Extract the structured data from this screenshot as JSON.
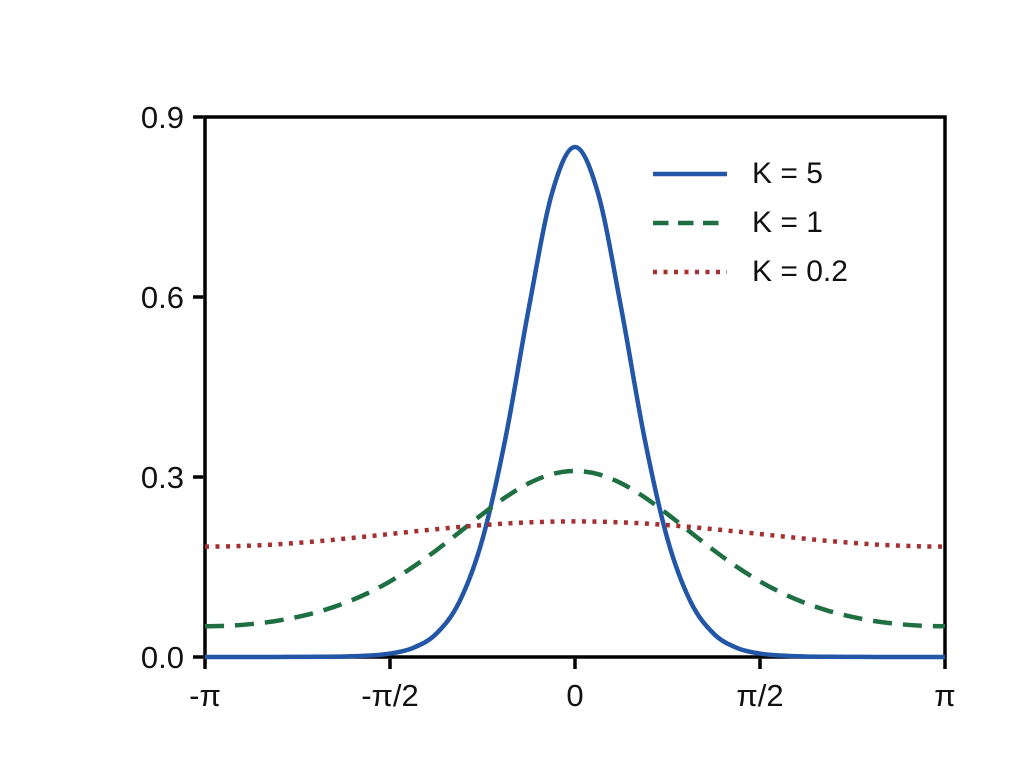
{
  "figure": {
    "background": "#ffffff",
    "axis_color": "#000000",
    "text_color": "#111111"
  },
  "chart_data": {
    "type": "line",
    "title": "",
    "xlabel": "",
    "ylabel": "",
    "grid": false,
    "legend_position": "upper right",
    "xlim": [
      -3.1416,
      3.1416
    ],
    "ylim": [
      0,
      0.9
    ],
    "x_ticks": [
      {
        "value": -3.1416,
        "label": "-π"
      },
      {
        "value": -1.5708,
        "label": "-π/2"
      },
      {
        "value": 0,
        "label": "0"
      },
      {
        "value": 1.5708,
        "label": "π/2"
      },
      {
        "value": 3.1416,
        "label": "π"
      }
    ],
    "y_ticks": [
      {
        "value": 0,
        "label": "0.0"
      },
      {
        "value": 0.3,
        "label": "0.3"
      },
      {
        "value": 0.6,
        "label": "0.6"
      },
      {
        "value": 0.9,
        "label": "0.9"
      }
    ],
    "x": [
      -3.1416,
      -2.9452,
      -2.7489,
      -2.5525,
      -2.3562,
      -2.1598,
      -1.9635,
      -1.7671,
      -1.5708,
      -1.3744,
      -1.1781,
      -0.9817,
      -0.7854,
      -0.589,
      -0.3927,
      -0.1963,
      0,
      0.1963,
      0.3927,
      0.589,
      0.7854,
      0.9817,
      1.1781,
      1.3744,
      1.5708,
      1.7671,
      1.9635,
      2.1598,
      2.3562,
      2.5525,
      2.7489,
      2.9452,
      3.1416
    ],
    "series": [
      {
        "name": "K = 5",
        "color": "#2356a7",
        "style": "solid",
        "values": [
          0,
          0,
          0.0001,
          0.0001,
          0.0002,
          0.0004,
          0.0008,
          0.0022,
          0.0057,
          0.0152,
          0.0388,
          0.0921,
          0.1965,
          0.366,
          0.5809,
          0.7722,
          0.85,
          0.7722,
          0.5809,
          0.366,
          0.1965,
          0.0921,
          0.0388,
          0.0152,
          0.0057,
          0.0022,
          0.0008,
          0.0004,
          0.0002,
          0.0001,
          0.0001,
          0,
          0
        ]
      },
      {
        "name": "K = 1",
        "color": "#1e6f42",
        "style": "dashed",
        "values": [
          0.0512,
          0.0521,
          0.0549,
          0.0596,
          0.0667,
          0.0764,
          0.0893,
          0.1057,
          0.126,
          0.1502,
          0.1779,
          0.2078,
          0.2382,
          0.2664,
          0.2895,
          0.3047,
          0.31,
          0.3047,
          0.2895,
          0.2664,
          0.2382,
          0.2078,
          0.1779,
          0.1502,
          0.126,
          0.1057,
          0.0893,
          0.0764,
          0.0667,
          0.0596,
          0.0549,
          0.0521,
          0.0512
        ]
      },
      {
        "name": "K = 0.2",
        "color": "#a52f31",
        "style": "dotted",
        "values": [
          0.184,
          0.1844,
          0.1856,
          0.1875,
          0.1902,
          0.1933,
          0.197,
          0.2009,
          0.205,
          0.2091,
          0.213,
          0.2167,
          0.2198,
          0.2225,
          0.2244,
          0.2256,
          0.226,
          0.2256,
          0.2244,
          0.2225,
          0.2198,
          0.2167,
          0.213,
          0.2091,
          0.205,
          0.2009,
          0.197,
          0.1933,
          0.1902,
          0.1875,
          0.1856,
          0.1844,
          0.184
        ]
      }
    ]
  }
}
